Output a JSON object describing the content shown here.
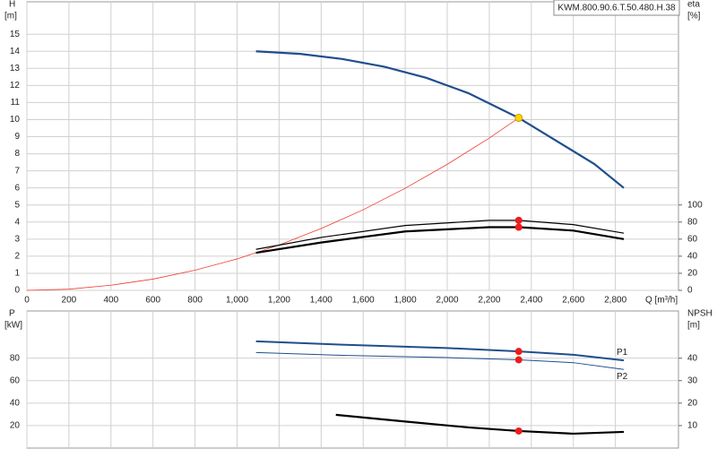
{
  "chart_data": [
    {
      "type": "line",
      "annotation": "KWM.800.90.6.T.50.480.H.38",
      "ylabel": "H",
      "yunit": "[m]",
      "y2label": "eta",
      "y2unit": "[%]",
      "xlabel": "Q [m³/h]",
      "xlim": [
        0,
        3100
      ],
      "xticks": [
        0,
        200,
        400,
        600,
        800,
        {
          "value": 1000,
          "label": "1,000"
        },
        {
          "value": 1200,
          "label": "1,200"
        },
        {
          "value": 1400,
          "label": "1,400"
        },
        {
          "value": 1600,
          "label": "1,600"
        },
        {
          "value": 1800,
          "label": "1,800"
        },
        {
          "value": 2000,
          "label": "2,000"
        },
        {
          "value": 2200,
          "label": "2,200"
        },
        {
          "value": 2400,
          "label": "2,400"
        },
        {
          "value": 2600,
          "label": "2,600"
        },
        {
          "value": 2800,
          "label": "2,800"
        }
      ],
      "ylim": [
        0,
        16.9
      ],
      "yticks": [
        0,
        1,
        2,
        3,
        4,
        5,
        6,
        7,
        8,
        9,
        10,
        11,
        12,
        13,
        14,
        15
      ],
      "y2lim": [
        0,
        338
      ],
      "y2ticks": [
        0,
        20,
        40,
        60,
        80,
        100
      ],
      "grid": true,
      "series": [
        {
          "style": "line",
          "color": "#ee3b2f",
          "width": 0.8,
          "x": [
            0,
            200,
            400,
            600,
            800,
            1000,
            1200,
            1400,
            1600,
            1800,
            2000,
            2200,
            2340
          ],
          "values": [
            0,
            0.07,
            0.3,
            0.66,
            1.18,
            1.84,
            2.66,
            3.62,
            4.72,
            5.98,
            7.38,
            8.92,
            10.1
          ]
        },
        {
          "style": "line",
          "color": "#1f4e8c",
          "width": 2.2,
          "x": [
            1090,
            1300,
            1500,
            1700,
            1900,
            2100,
            2340,
            2500,
            2700,
            2840
          ],
          "values": [
            14,
            13.85,
            13.55,
            13.1,
            12.45,
            11.55,
            10.1,
            8.9,
            7.4,
            6
          ]
        },
        {
          "style": "line",
          "axis": "y2",
          "color": "#000000",
          "width": 1.2,
          "x": [
            1090,
            1400,
            1800,
            2200,
            2340,
            2600,
            2840
          ],
          "values": [
            48,
            62,
            76,
            82,
            82,
            77,
            67
          ]
        },
        {
          "style": "line",
          "axis": "y2",
          "color": "#000000",
          "width": 2.2,
          "x": [
            1090,
            1400,
            1800,
            2200,
            2340,
            2600,
            2840
          ],
          "values": [
            44,
            56,
            69,
            74,
            74,
            70,
            60
          ]
        },
        {
          "style": "point",
          "color": "#ffd400",
          "x": [
            2340
          ],
          "values": [
            10.1
          ]
        },
        {
          "style": "point",
          "axis": "y2",
          "color": "#ee1c1c",
          "x": [
            2340,
            2340
          ],
          "values": [
            82,
            74
          ]
        }
      ]
    },
    {
      "type": "line",
      "ylabel": "P",
      "yunit": "[kW]",
      "y2label": "NPSH",
      "y2unit": "[m]",
      "xlim": [
        0,
        3100
      ],
      "xticks": [
        0,
        200,
        400,
        600,
        800,
        1000,
        1200,
        1400,
        1600,
        1800,
        2000,
        2200,
        2400,
        2600,
        2800
      ],
      "ylim": [
        0,
        122
      ],
      "yticks": [
        20,
        40,
        60,
        80
      ],
      "y2lim": [
        0,
        61
      ],
      "y2ticks": [
        10,
        20,
        30,
        40
      ],
      "grid": true,
      "series": [
        {
          "name": "P1",
          "style": "line",
          "color": "#1f4e8c",
          "width": 2,
          "x": [
            1090,
            1500,
            2000,
            2340,
            2600,
            2840
          ],
          "values": [
            95,
            92,
            89,
            86,
            83,
            78
          ]
        },
        {
          "name": "P2",
          "style": "line",
          "color": "#1f4e8c",
          "width": 1,
          "x": [
            1090,
            1500,
            2000,
            2340,
            2600,
            2840
          ],
          "values": [
            85,
            82.5,
            80.5,
            78.5,
            76,
            70
          ]
        },
        {
          "style": "line",
          "axis": "y2",
          "color": "#000000",
          "width": 2.2,
          "x": [
            1470,
            1800,
            2100,
            2340,
            2600,
            2840
          ],
          "values": [
            14.8,
            11.8,
            9.2,
            7.6,
            6.4,
            7.2
          ]
        },
        {
          "style": "point",
          "color": "#ee1c1c",
          "x": [
            2340,
            2340
          ],
          "values": [
            86,
            78.5
          ]
        },
        {
          "style": "point",
          "axis": "y2",
          "color": "#ee1c1c",
          "x": [
            2340
          ],
          "values": [
            7.6
          ]
        }
      ]
    }
  ]
}
